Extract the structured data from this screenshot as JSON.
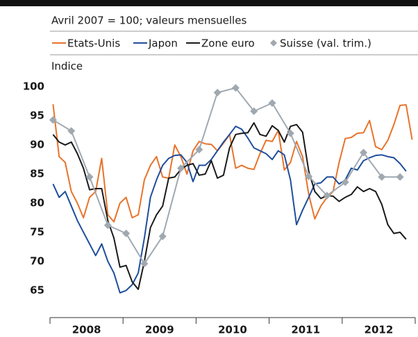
{
  "chart_data": {
    "type": "line",
    "subtitle": "Avril 2007 = 100; valeurs mensuelles",
    "y_label": "Indice",
    "categories": [
      "2008",
      "2009",
      "2010",
      "2011",
      "2012"
    ],
    "xlim": [
      2008,
      2013
    ],
    "xticks": [
      2008,
      2009,
      2010,
      2011,
      2012,
      2013
    ],
    "ylim": [
      60.7,
      101.8
    ],
    "yticks": [
      65,
      70,
      75,
      80,
      85,
      90,
      95,
      100
    ],
    "grid": false,
    "x": [
      2008.042,
      2008.125,
      2008.208,
      2008.292,
      2008.375,
      2008.458,
      2008.542,
      2008.625,
      2008.708,
      2008.792,
      2008.875,
      2008.958,
      2009.042,
      2009.125,
      2009.208,
      2009.292,
      2009.375,
      2009.458,
      2009.542,
      2009.625,
      2009.708,
      2009.792,
      2009.875,
      2009.958,
      2010.042,
      2010.125,
      2010.208,
      2010.292,
      2010.375,
      2010.458,
      2010.542,
      2010.625,
      2010.708,
      2010.792,
      2010.875,
      2010.958,
      2011.042,
      2011.125,
      2011.208,
      2011.292,
      2011.375,
      2011.458,
      2011.542,
      2011.625,
      2011.708,
      2011.792,
      2011.875,
      2011.958,
      2012.042,
      2012.125,
      2012.208,
      2012.292,
      2012.375,
      2012.458,
      2012.542,
      2012.625,
      2012.708,
      2012.792,
      2012.875,
      2012.958
    ],
    "series": [
      {
        "name": "Etats-Unis",
        "color": "#e8732a",
        "values": [
          97,
          88,
          87,
          82,
          80,
          77.5,
          81,
          82,
          87.7,
          78,
          76.8,
          80,
          81,
          77.5,
          78,
          84,
          86.5,
          88,
          84.5,
          84.3,
          90,
          88,
          85,
          89,
          90.6,
          90.2,
          90.1,
          89,
          90.3,
          91.8,
          86,
          86.5,
          86,
          85.8,
          88.5,
          90.8,
          90.6,
          92.5,
          85.7,
          87,
          90.6,
          88,
          81.5,
          77.3,
          79.5,
          81,
          82,
          87,
          91.1,
          91.3,
          92,
          92.1,
          94.2,
          89.7,
          89.2,
          90.8,
          93.5,
          96.8,
          96.9,
          90.9
        ]
      },
      {
        "name": "Japon",
        "color": "#1f4e9c",
        "values": [
          83.3,
          81,
          82,
          79.5,
          77,
          75,
          73,
          71,
          73,
          70,
          68,
          64.6,
          65,
          66,
          68,
          74,
          81,
          84,
          86.5,
          87.7,
          88.2,
          88.3,
          87,
          83.7,
          86.5,
          86.5,
          87.5,
          89,
          90.5,
          91.8,
          93.2,
          92.7,
          91.2,
          89.5,
          89,
          88.5,
          87.5,
          89,
          88.3,
          84,
          76.3,
          78.8,
          81,
          83.3,
          83.5,
          84.5,
          84.5,
          83.3,
          84,
          86,
          85.7,
          87.3,
          87.8,
          88.2,
          88.3,
          88,
          87.8,
          86.8,
          85.5,
          null
        ]
      },
      {
        "name": "Zone euro",
        "color": "#1a1a1a",
        "values": [
          91.8,
          90.5,
          90,
          90.5,
          88.5,
          86,
          82.3,
          82.5,
          82.5,
          77,
          74,
          69,
          69.3,
          66.5,
          65.2,
          70,
          75.8,
          78,
          79.5,
          84.3,
          84.5,
          85.8,
          86.5,
          86.8,
          84.8,
          85,
          87.3,
          84.3,
          84.8,
          89.5,
          91.8,
          92,
          92.1,
          93.8,
          91.8,
          91.5,
          93.3,
          92.5,
          90.5,
          93.2,
          93.5,
          92.2,
          85.5,
          82,
          80.8,
          81.3,
          81.2,
          80.3,
          81,
          81.5,
          82.8,
          82,
          82.5,
          82,
          79.8,
          76.3,
          74.8,
          75,
          73.8,
          null
        ]
      },
      {
        "name": "Suisse (val. trim.)",
        "color": "#a0a8b0",
        "marker": "diamond",
        "x": [
          2008.042,
          2008.292,
          2008.542,
          2008.792,
          2009.042,
          2009.292,
          2009.542,
          2009.792,
          2010.042,
          2010.292,
          2010.542,
          2010.792,
          2011.042,
          2011.292,
          2011.542,
          2011.792,
          2012.042,
          2012.292,
          2012.542,
          2012.792
        ],
        "values": [
          94.3,
          92.4,
          84.5,
          76.2,
          74.8,
          69.6,
          74.3,
          86,
          89.2,
          99,
          99.8,
          95.8,
          97.2,
          92,
          84.6,
          81.3,
          83.6,
          88.7,
          84.5,
          84.5
        ]
      }
    ]
  }
}
